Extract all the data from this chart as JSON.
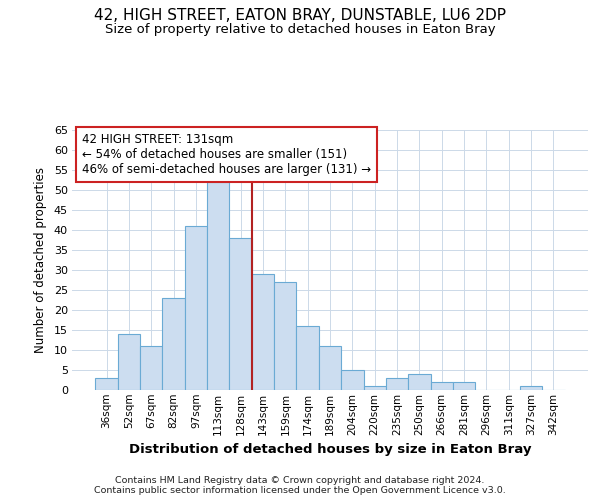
{
  "title1": "42, HIGH STREET, EATON BRAY, DUNSTABLE, LU6 2DP",
  "title2": "Size of property relative to detached houses in Eaton Bray",
  "xlabel": "Distribution of detached houses by size in Eaton Bray",
  "ylabel": "Number of detached properties",
  "categories": [
    "36sqm",
    "52sqm",
    "67sqm",
    "82sqm",
    "97sqm",
    "113sqm",
    "128sqm",
    "143sqm",
    "159sqm",
    "174sqm",
    "189sqm",
    "204sqm",
    "220sqm",
    "235sqm",
    "250sqm",
    "266sqm",
    "281sqm",
    "296sqm",
    "311sqm",
    "327sqm",
    "342sqm"
  ],
  "values": [
    3,
    14,
    11,
    23,
    41,
    52,
    38,
    29,
    27,
    16,
    11,
    5,
    1,
    3,
    4,
    2,
    2,
    0,
    0,
    1,
    0
  ],
  "bar_color": "#ccddf0",
  "bar_edge_color": "#6aaad4",
  "vline_color": "#b22222",
  "annotation_text": "42 HIGH STREET: 131sqm\n← 54% of detached houses are smaller (151)\n46% of semi-detached houses are larger (131) →",
  "annotation_box_color": "#ffffff",
  "annotation_box_edge": "#cc2222",
  "ylim": [
    0,
    65
  ],
  "yticks": [
    0,
    5,
    10,
    15,
    20,
    25,
    30,
    35,
    40,
    45,
    50,
    55,
    60,
    65
  ],
  "footer1": "Contains HM Land Registry data © Crown copyright and database right 2024.",
  "footer2": "Contains public sector information licensed under the Open Government Licence v3.0.",
  "bg_color": "#ffffff",
  "grid_color": "#ccd9e8"
}
